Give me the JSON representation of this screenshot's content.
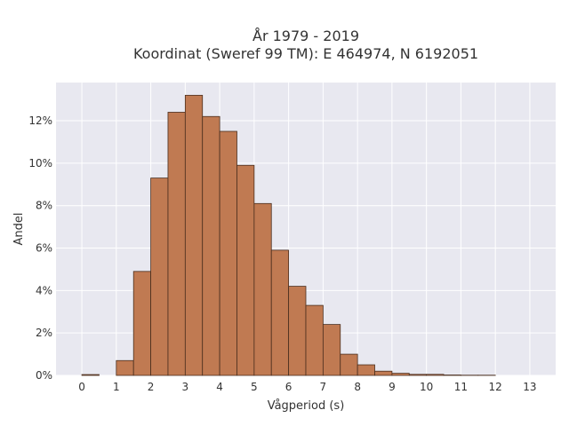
{
  "chart_data": {
    "type": "bar",
    "title_lines": [
      "År 1979 - 2019",
      "Koordinat (Sweref 99 TM): E 464974, N 6192051"
    ],
    "xlabel": "Vågperiod (s)",
    "ylabel": "Andel",
    "bin_width": 0.5,
    "bin_starts": [
      0,
      0.5,
      1,
      1.5,
      2,
      2.5,
      3,
      3.5,
      4,
      4.5,
      5,
      5.5,
      6,
      6.5,
      7,
      7.5,
      8,
      8.5,
      9,
      9.5,
      10,
      10.5,
      11,
      11.5,
      12,
      12.5
    ],
    "values": [
      0.04,
      0.0,
      0.7,
      4.9,
      9.3,
      12.4,
      13.2,
      12.2,
      11.5,
      9.9,
      8.1,
      5.9,
      4.2,
      3.3,
      2.4,
      1.0,
      0.5,
      0.2,
      0.1,
      0.05,
      0.05,
      0.02,
      0.01,
      0.01,
      0.0,
      0.0
    ],
    "xlim": [
      -0.75,
      13.75
    ],
    "ylim": [
      0,
      13.8
    ],
    "x_ticks": [
      "0",
      "1",
      "2",
      "3",
      "4",
      "5",
      "6",
      "7",
      "8",
      "9",
      "10",
      "11",
      "12",
      "13"
    ],
    "y_ticks": [
      "0%",
      "2%",
      "4%",
      "6%",
      "8%",
      "10%",
      "12%"
    ],
    "grid": true,
    "colors": {
      "bar_fill": "#c07a52",
      "bar_edge": "#4a2e1e",
      "plot_bg": "#e8e8f0",
      "grid": "#ffffff"
    }
  }
}
